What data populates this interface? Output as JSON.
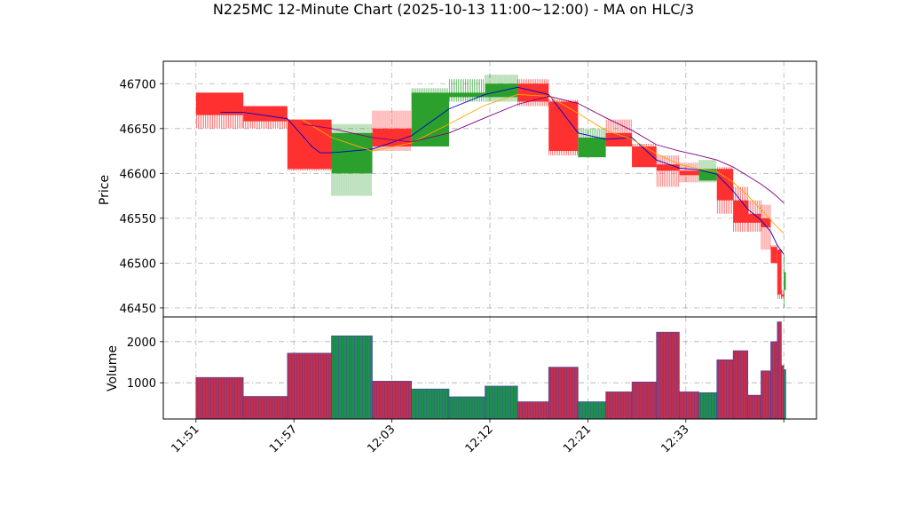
{
  "chart_data": {
    "type": "candlestick",
    "title": "N225MC 12-Minute Chart (2025-10-13 11:00~12:00) - MA on HLC/3",
    "price_panel": {
      "ylabel": "Price",
      "ylim": [
        46440,
        46725
      ],
      "yticks": [
        46450,
        46500,
        46550,
        46600,
        46650,
        46700
      ],
      "grid": true
    },
    "volume_panel": {
      "ylabel": "Volume",
      "ylim": [
        120,
        2600
      ],
      "yticks": [
        1000,
        2000
      ],
      "grid": true
    },
    "x_tick_labels": [
      {
        "t": 0,
        "label": "11:51"
      },
      {
        "t": 6,
        "label": "11:57"
      },
      {
        "t": 12,
        "label": "12:03"
      },
      {
        "t": 18,
        "label": "12:12"
      },
      {
        "t": 24,
        "label": "12:21"
      },
      {
        "t": 30,
        "label": "12:33"
      },
      {
        "t": 36,
        "label": ""
      }
    ],
    "x_range": [
      -2,
      38
    ],
    "colors": {
      "up": "#2ca02c",
      "down": "#ff3030",
      "ma_fast": "#0000cd",
      "ma_mid": "#ffa500",
      "ma_slow": "#800080",
      "volume_edge": "#4040a0"
    },
    "candles": [
      {
        "start": 0.0,
        "end": 2.9,
        "open": 46690,
        "high": 46690,
        "low": 46650,
        "close": 46665,
        "volume": 1130
      },
      {
        "start": 2.9,
        "end": 5.6,
        "open": 46675,
        "high": 46675,
        "low": 46650,
        "close": 46658,
        "volume": 670
      },
      {
        "start": 5.6,
        "end": 8.3,
        "open": 46660,
        "high": 46660,
        "low": 46603,
        "close": 46605,
        "volume": 1720
      },
      {
        "start": 8.3,
        "end": 10.8,
        "open": 46600,
        "high": 46655,
        "low": 46575,
        "close": 46645,
        "volume": 2140
      },
      {
        "start": 10.8,
        "end": 13.2,
        "open": 46650,
        "high": 46670,
        "low": 46625,
        "close": 46630,
        "volume": 1040
      },
      {
        "start": 13.2,
        "end": 15.5,
        "open": 46630,
        "high": 46695,
        "low": 46630,
        "close": 46690,
        "volume": 850
      },
      {
        "start": 15.5,
        "end": 17.7,
        "open": 46685,
        "high": 46705,
        "low": 46680,
        "close": 46690,
        "volume": 660
      },
      {
        "start": 17.7,
        "end": 19.7,
        "open": 46685,
        "high": 46710,
        "low": 46680,
        "close": 46700,
        "volume": 920
      },
      {
        "start": 19.7,
        "end": 21.6,
        "open": 46700,
        "high": 46705,
        "low": 46675,
        "close": 46680,
        "volume": 540
      },
      {
        "start": 21.6,
        "end": 23.4,
        "open": 46680,
        "high": 46682,
        "low": 46620,
        "close": 46625,
        "volume": 1380
      },
      {
        "start": 23.4,
        "end": 25.1,
        "open": 46618,
        "high": 46650,
        "low": 46618,
        "close": 46640,
        "volume": 540
      },
      {
        "start": 25.1,
        "end": 26.7,
        "open": 46645,
        "high": 46660,
        "low": 46630,
        "close": 46630,
        "volume": 780
      },
      {
        "start": 26.7,
        "end": 28.2,
        "open": 46630,
        "high": 46633,
        "low": 46607,
        "close": 46607,
        "volume": 1020
      },
      {
        "start": 28.2,
        "end": 29.6,
        "open": 46610,
        "high": 46620,
        "low": 46585,
        "close": 46603,
        "volume": 2230
      },
      {
        "start": 29.6,
        "end": 30.8,
        "open": 46603,
        "high": 46612,
        "low": 46590,
        "close": 46598,
        "volume": 780
      },
      {
        "start": 30.8,
        "end": 31.9,
        "open": 46592,
        "high": 46615,
        "low": 46590,
        "close": 46605,
        "volume": 760
      },
      {
        "start": 31.9,
        "end": 32.9,
        "open": 46605,
        "high": 46607,
        "low": 46555,
        "close": 46570,
        "volume": 1560
      },
      {
        "start": 32.9,
        "end": 33.8,
        "open": 46570,
        "high": 46585,
        "low": 46535,
        "close": 46545,
        "volume": 1780
      },
      {
        "start": 33.8,
        "end": 34.6,
        "open": 46555,
        "high": 46570,
        "low": 46535,
        "close": 46545,
        "volume": 700
      },
      {
        "start": 34.6,
        "end": 35.2,
        "open": 46550,
        "high": 46565,
        "low": 46515,
        "close": 46540,
        "volume": 1290
      },
      {
        "start": 35.2,
        "end": 35.6,
        "open": 46518,
        "high": 46520,
        "low": 46500,
        "close": 46500,
        "volume": 2000
      },
      {
        "start": 35.6,
        "end": 35.85,
        "open": 46515,
        "high": 46515,
        "low": 46460,
        "close": 46465,
        "volume": 2480
      },
      {
        "start": 35.85,
        "end": 36.0,
        "open": 46465,
        "high": 46470,
        "low": 46460,
        "close": 46463,
        "volume": 1420
      },
      {
        "start": 36.0,
        "end": 36.12,
        "open": 46470,
        "high": 46510,
        "low": 46450,
        "close": 46490,
        "volume": 1320
      }
    ],
    "series": [
      {
        "style": "ma_fast",
        "points": [
          [
            1.5,
            46668
          ],
          [
            2.9,
            46668
          ],
          [
            5.6,
            46661
          ],
          [
            7.1,
            46630
          ],
          [
            7.6,
            46623
          ],
          [
            8.3,
            46623
          ],
          [
            10.8,
            46627
          ],
          [
            13.2,
            46642
          ],
          [
            15.5,
            46672
          ],
          [
            17.7,
            46688
          ],
          [
            19.7,
            46696
          ],
          [
            21.6,
            46688
          ],
          [
            23.4,
            46645
          ],
          [
            25.1,
            46638
          ],
          [
            26.7,
            46640
          ],
          [
            28.2,
            46615
          ],
          [
            29.6,
            46606
          ],
          [
            30.8,
            46604
          ],
          [
            31.9,
            46599
          ],
          [
            32.9,
            46580
          ],
          [
            33.8,
            46560
          ],
          [
            34.6,
            46548
          ],
          [
            35.2,
            46535
          ],
          [
            35.6,
            46520
          ],
          [
            36.0,
            46510
          ]
        ]
      },
      {
        "style": "ma_mid",
        "points": [
          [
            6.5,
            46660
          ],
          [
            8.3,
            46640
          ],
          [
            10.8,
            46625
          ],
          [
            13.2,
            46634
          ],
          [
            15.5,
            46655
          ],
          [
            17.7,
            46676
          ],
          [
            19.7,
            46688
          ],
          [
            21.6,
            46686
          ],
          [
            23.4,
            46667
          ],
          [
            25.1,
            46648
          ],
          [
            26.7,
            46638
          ],
          [
            28.2,
            46622
          ],
          [
            29.6,
            46610
          ],
          [
            30.8,
            46605
          ],
          [
            31.9,
            46602
          ],
          [
            32.9,
            46590
          ],
          [
            33.8,
            46575
          ],
          [
            34.6,
            46560
          ],
          [
            35.2,
            46548
          ],
          [
            35.6,
            46540
          ],
          [
            36.0,
            46533
          ]
        ]
      },
      {
        "style": "ma_slow",
        "points": [
          [
            6.5,
            46655
          ],
          [
            8.3,
            46650
          ],
          [
            10.8,
            46640
          ],
          [
            13.2,
            46635
          ],
          [
            15.5,
            46645
          ],
          [
            17.7,
            46662
          ],
          [
            19.7,
            46677
          ],
          [
            21.6,
            46686
          ],
          [
            23.4,
            46678
          ],
          [
            25.1,
            46662
          ],
          [
            26.7,
            46648
          ],
          [
            28.2,
            46632
          ],
          [
            29.6,
            46625
          ],
          [
            30.8,
            46620
          ],
          [
            31.9,
            46615
          ],
          [
            32.9,
            46607
          ],
          [
            33.8,
            46597
          ],
          [
            34.6,
            46588
          ],
          [
            35.2,
            46580
          ],
          [
            35.6,
            46574
          ],
          [
            36.0,
            46567
          ]
        ]
      }
    ]
  }
}
